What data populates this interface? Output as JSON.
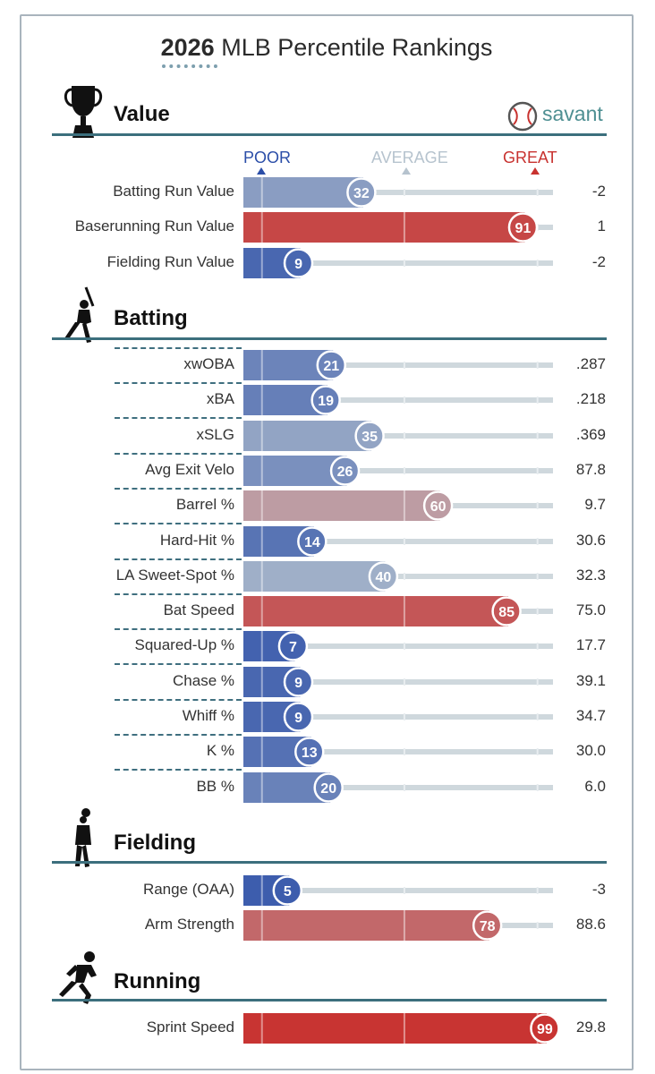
{
  "title_year": "2026",
  "title_rest": "MLB Percentile Rankings",
  "brand": "savant",
  "scale": {
    "poor": "POOR",
    "average": "AVERAGE",
    "great": "GREAT"
  },
  "colors": {
    "poor": "#2b4ea8",
    "average": "#b9c4cf",
    "great": "#c8322f",
    "track": "#cfd8dd",
    "rule": "#3c6f7d"
  },
  "sections": [
    {
      "key": "value",
      "title": "Value",
      "icon": "trophy-icon"
    },
    {
      "key": "batting",
      "title": "Batting",
      "icon": "batter-icon"
    },
    {
      "key": "fielding",
      "title": "Fielding",
      "icon": "fielder-icon"
    },
    {
      "key": "running",
      "title": "Running",
      "icon": "runner-icon"
    }
  ],
  "chart_data": {
    "type": "bar",
    "title": "2026 MLB Percentile Rankings",
    "xlim": [
      0,
      100
    ],
    "groups": [
      {
        "section": "Value",
        "rows": [
          {
            "label": "Batting Run Value",
            "percentile": 32,
            "stat": "-2"
          },
          {
            "label": "Baserunning Run Value",
            "percentile": 91,
            "stat": "1"
          },
          {
            "label": "Fielding Run Value",
            "percentile": 9,
            "stat": "-2"
          }
        ]
      },
      {
        "section": "Batting",
        "rows": [
          {
            "label": "xwOBA",
            "percentile": 21,
            "stat": ".287"
          },
          {
            "label": "xBA",
            "percentile": 19,
            "stat": ".218"
          },
          {
            "label": "xSLG",
            "percentile": 35,
            "stat": ".369"
          },
          {
            "label": "Avg Exit Velo",
            "percentile": 26,
            "stat": "87.8"
          },
          {
            "label": "Barrel %",
            "percentile": 60,
            "stat": "9.7"
          },
          {
            "label": "Hard-Hit %",
            "percentile": 14,
            "stat": "30.6"
          },
          {
            "label": "LA Sweet-Spot %",
            "percentile": 40,
            "stat": "32.3"
          },
          {
            "label": "Bat Speed",
            "percentile": 85,
            "stat": "75.0"
          },
          {
            "label": "Squared-Up %",
            "percentile": 7,
            "stat": "17.7"
          },
          {
            "label": "Chase %",
            "percentile": 9,
            "stat": "39.1"
          },
          {
            "label": "Whiff %",
            "percentile": 9,
            "stat": "34.7"
          },
          {
            "label": "K %",
            "percentile": 13,
            "stat": "30.0"
          },
          {
            "label": "BB %",
            "percentile": 20,
            "stat": "6.0"
          }
        ]
      },
      {
        "section": "Fielding",
        "rows": [
          {
            "label": "Range (OAA)",
            "percentile": 5,
            "stat": "-3"
          },
          {
            "label": "Arm Strength",
            "percentile": 78,
            "stat": "88.6"
          }
        ]
      },
      {
        "section": "Running",
        "rows": [
          {
            "label": "Sprint Speed",
            "percentile": 99,
            "stat": "29.8"
          }
        ]
      }
    ]
  }
}
